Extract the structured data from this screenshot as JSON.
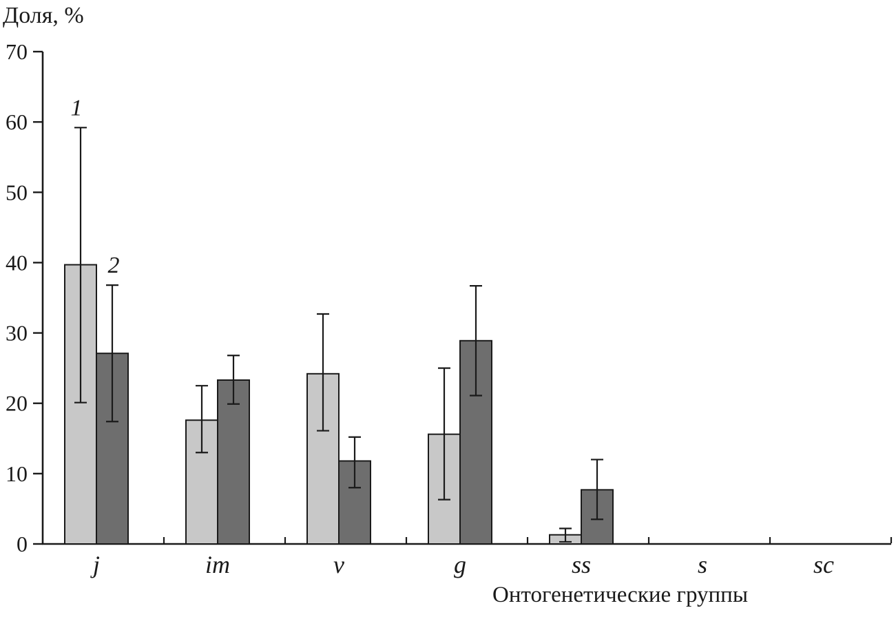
{
  "page": {
    "background": "#ffffff"
  },
  "chart_data": {
    "type": "bar",
    "title": "",
    "ylabel": "Доля, %",
    "xlabel": "Онтогенетические группы",
    "ylim": [
      0,
      70
    ],
    "yticks": [
      0,
      10,
      20,
      30,
      40,
      50,
      60,
      70
    ],
    "categories": [
      "j",
      "im",
      "v",
      "g",
      "ss",
      "s",
      "sc"
    ],
    "grid": false,
    "legend_position": "series labels 1 and 2 above first category group",
    "axis_color": "#1a1a1a",
    "series": [
      {
        "name": "1",
        "color": "#c8c8c8",
        "values": [
          39.7,
          17.6,
          24.2,
          15.6,
          1.3,
          0,
          0
        ],
        "err_low": [
          20.1,
          13.0,
          16.1,
          6.3,
          0.3,
          null,
          null
        ],
        "err_high": [
          59.2,
          22.5,
          32.7,
          25.0,
          2.2,
          null,
          null
        ]
      },
      {
        "name": "2",
        "color": "#6e6e6e",
        "values": [
          27.1,
          23.3,
          11.8,
          28.9,
          7.7,
          0,
          0
        ],
        "err_low": [
          17.4,
          19.9,
          8.0,
          21.1,
          3.5,
          null,
          null
        ],
        "err_high": [
          36.8,
          26.8,
          15.2,
          36.7,
          12.0,
          null,
          null
        ]
      }
    ]
  }
}
